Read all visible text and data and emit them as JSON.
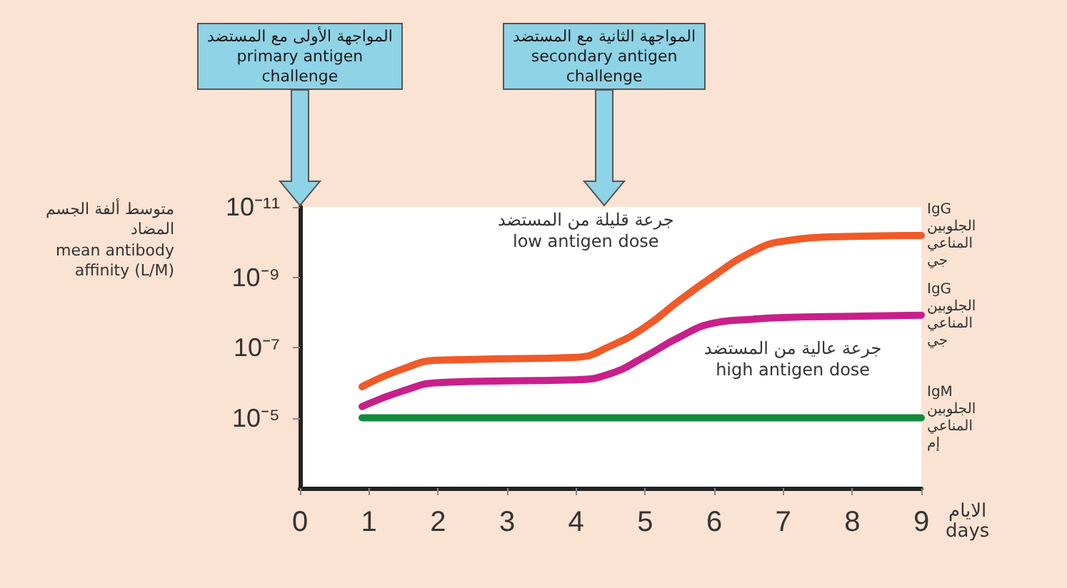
{
  "chart_data": {
    "type": "line",
    "ylabel": "متوسط ألفة الجسم المضاد\nmean antibody affinity (L/M)",
    "xlabel": "الايام\ndays",
    "log": "y",
    "xlim": [
      0,
      9
    ],
    "xticks": [
      0,
      1,
      2,
      3,
      4,
      5,
      6,
      7,
      8,
      9
    ],
    "ylim": [
      0.001,
      1e-11
    ],
    "yticks": [
      {
        "value": 1e-11,
        "label": "10⁻¹¹"
      },
      {
        "value": 1e-09,
        "label": "10⁻⁹"
      },
      {
        "value": 1e-07,
        "label": "10⁻⁷"
      },
      {
        "value": 1e-05,
        "label": "10⁻⁵"
      }
    ],
    "grid": false,
    "marker": "none",
    "line_style": "solid",
    "series": [
      {
        "name": "IgG الجلوبين المناعي جي",
        "color": "#f05a28",
        "x": [
          0.9,
          1.5,
          2,
          3,
          4,
          4.5,
          5,
          5.5,
          6,
          6.5,
          7,
          8,
          9
        ],
        "values": [
          1.3e-06,
          4e-07,
          2.3e-07,
          2.1e-07,
          1.9e-07,
          9e-08,
          2.6e-08,
          4.5e-09,
          9e-10,
          2.1e-10,
          9.5e-11,
          6.9e-11,
          6.5e-11
        ]
      },
      {
        "name": "IgG الجلوبين المناعي جي",
        "color": "#c8208a",
        "x": [
          0.9,
          1.5,
          2,
          3,
          4,
          4.5,
          5,
          5.5,
          6,
          6.5,
          7,
          8,
          9
        ],
        "values": [
          4.8e-06,
          1.7e-06,
          1e-06,
          8.9e-07,
          8.3e-07,
          5.5e-07,
          1.8e-07,
          5e-08,
          2e-08,
          1.6e-08,
          1.4e-08,
          1.3e-08,
          1.2e-08
        ]
      },
      {
        "name": "IgM الجلوبين المناعي إم",
        "color": "#138a3c",
        "x": [
          0.9,
          9
        ],
        "values": [
          1e-05,
          1e-05
        ]
      }
    ],
    "annotations": [
      "المواجهة الأولى مع المستضد\nprimary antigen\nchallenge",
      "المواجهة الثانية مع المستضد\nsecondary antigen\nchallenge",
      "جرعة قليلة من المستضد\nlow antigen dose",
      "جرعة عالية من المستضد\nhigh antigen dose"
    ]
  }
}
